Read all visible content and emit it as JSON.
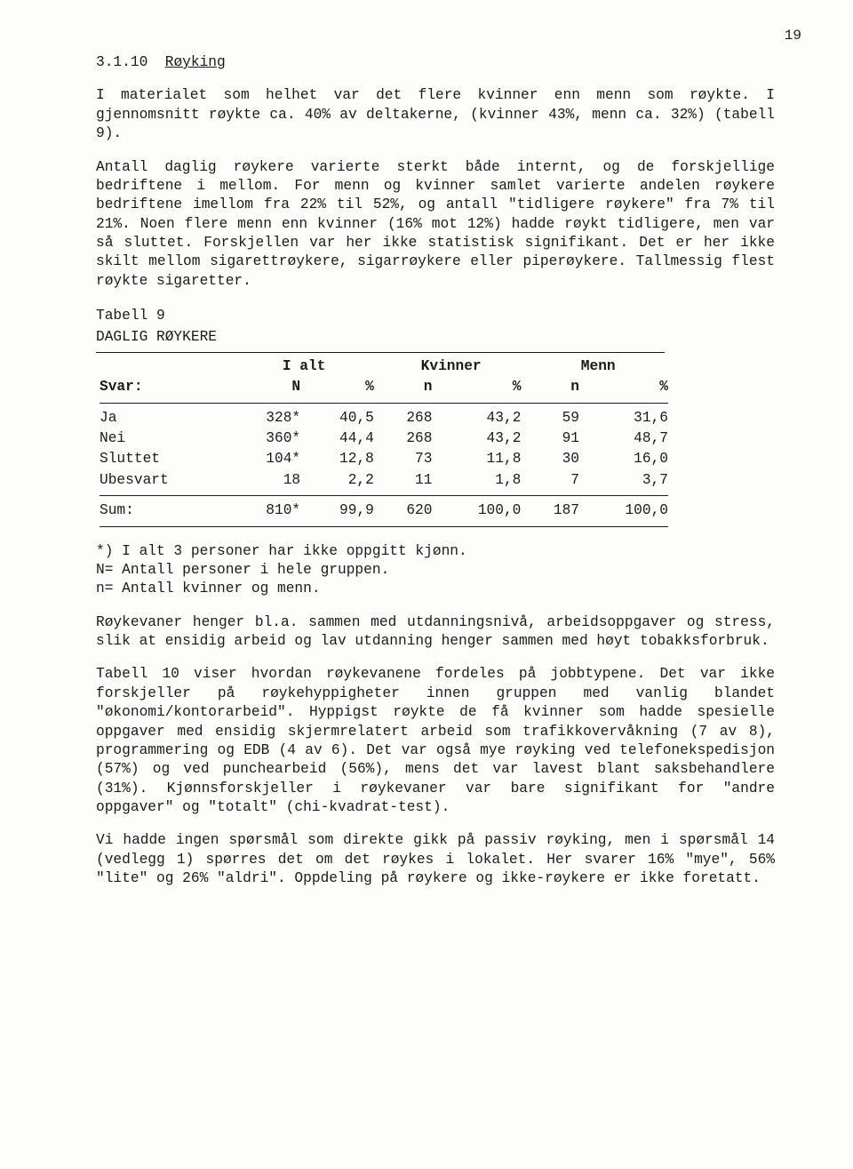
{
  "page_number": "19",
  "section_number": "3.1.10",
  "section_title": "Røyking",
  "paragraphs": {
    "p1": "I materialet som helhet var det flere kvinner enn menn som røykte. I gjennomsnitt røykte ca. 40% av deltakerne, (kvinner 43%, menn ca. 32%) (tabell 9).",
    "p2": "Antall daglig røykere varierte sterkt både internt, og de forskjellige bedriftene i mellom. For menn og kvinner samlet varierte andelen røykere bedriftene imellom fra 22% til 52%, og antall \"tidligere røykere\" fra 7% til 21%. Noen flere menn enn kvinner (16% mot 12%) hadde røykt tidligere, men var så sluttet. Forskjellen var her ikke statistisk signifikant. Det er her ikke skilt mellom sigarettrøykere, sigarrøykere eller piperøykere. Tallmessig flest røykte sigaretter.",
    "p3": "Røykevaner henger bl.a. sammen med utdanningsnivå, arbeidsoppgaver og stress, slik at ensidig arbeid og lav utdanning henger sammen med høyt tobakksforbruk.",
    "p4": "Tabell 10 viser hvordan røykevanene fordeles på jobbtypene. Det var ikke forskjeller på røykehyppigheter innen gruppen med vanlig blandet \"økonomi/kontorarbeid\". Hyppigst røykte de få kvinner som hadde spesielle oppgaver med ensidig skjermrelatert arbeid som trafikkovervåkning (7 av 8), programmering og EDB (4 av 6). Det var også mye røyking ved telefonekspedisjon (57%) og ved punchearbeid (56%), mens det var lavest blant saksbehandlere (31%). Kjønnsforskjeller i røykevaner var bare signifikant for \"andre oppgaver\" og \"totalt\" (chi-kvadrat-test).",
    "p5": "Vi hadde ingen spørsmål som direkte gikk på passiv røyking, men i spørsmål 14 (vedlegg 1) spørres det om det røykes i lokalet. Her svarer 16% \"mye\", 56% \"lite\" og 26% \"aldri\". Oppdeling på røykere og ikke-røykere er ikke foretatt."
  },
  "table": {
    "label": "Tabell 9",
    "subtitle": "DAGLIG RØYKERE",
    "header": {
      "svar": "Svar:",
      "ialt": "I alt",
      "kvinner": "Kvinner",
      "menn": "Menn",
      "N": "N",
      "pct": "%",
      "n": "n"
    },
    "rows": [
      {
        "label": "Ja",
        "N": "328*",
        "Npct": "40,5",
        "kn": "268",
        "kpct": "43,2",
        "mn": "59",
        "mpct": "31,6"
      },
      {
        "label": "Nei",
        "N": "360*",
        "Npct": "44,4",
        "kn": "268",
        "kpct": "43,2",
        "mn": "91",
        "mpct": "48,7"
      },
      {
        "label": "Sluttet",
        "N": "104*",
        "Npct": "12,8",
        "kn": "73",
        "kpct": "11,8",
        "mn": "30",
        "mpct": "16,0"
      },
      {
        "label": "Ubesvart",
        "N": "18",
        "Npct": "2,2",
        "kn": "11",
        "kpct": "1,8",
        "mn": "7",
        "mpct": "3,7"
      }
    ],
    "sum": {
      "label": "Sum:",
      "N": "810*",
      "Npct": "99,9",
      "kn": "620",
      "kpct": "100,0",
      "mn": "187",
      "mpct": "100,0"
    },
    "footnotes": {
      "f1": "*) I alt 3 personer har ikke oppgitt kjønn.",
      "f2": "N= Antall personer i hele gruppen.",
      "f3": "n= Antall kvinner og menn."
    }
  }
}
